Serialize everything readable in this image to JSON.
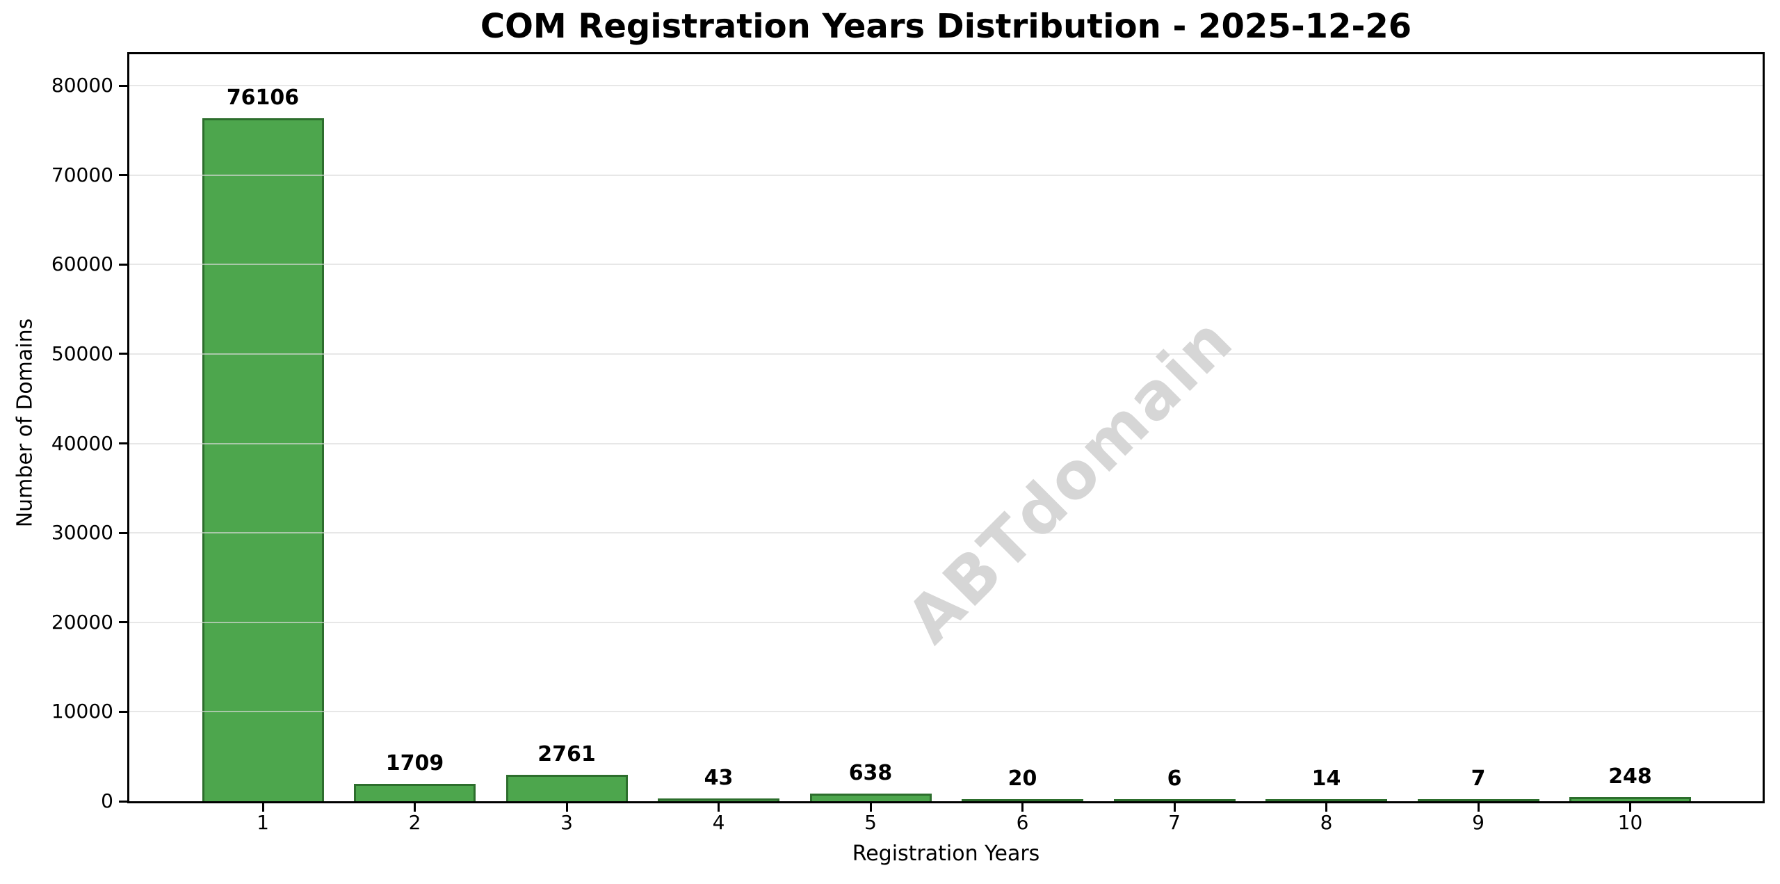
{
  "title": "COM Registration Years Distribution - 2025-12-26",
  "chart_data": {
    "type": "bar",
    "title": "COM Registration Years Distribution - 2025-12-26",
    "categories": [
      "1",
      "2",
      "3",
      "4",
      "5",
      "6",
      "7",
      "8",
      "9",
      "10"
    ],
    "values": [
      76106,
      1709,
      2761,
      43,
      638,
      20,
      6,
      14,
      7,
      248
    ],
    "value_labels": [
      "76106",
      "1709",
      "2761",
      "43",
      "638",
      "20",
      "6",
      "14",
      "7",
      "248"
    ],
    "xlabel": "Registration Years",
    "ylabel": "Number of Domains",
    "ylim": [
      0,
      83500
    ],
    "yticks": [
      0,
      10000,
      20000,
      30000,
      40000,
      50000,
      60000,
      70000,
      80000
    ],
    "ytick_labels": [
      "0",
      "10000",
      "20000",
      "30000",
      "40000",
      "50000",
      "60000",
      "70000",
      "80000"
    ],
    "grid": "horizontal",
    "legend": "none",
    "watermark": "ABTdomain",
    "colors": {
      "bar_fill": "#4DA64D",
      "bar_edge": "#2D6E2D",
      "gridline": "#E8E8E8",
      "watermark": "#D6D6D6",
      "text": "#000000",
      "background": "#FFFFFF"
    }
  }
}
